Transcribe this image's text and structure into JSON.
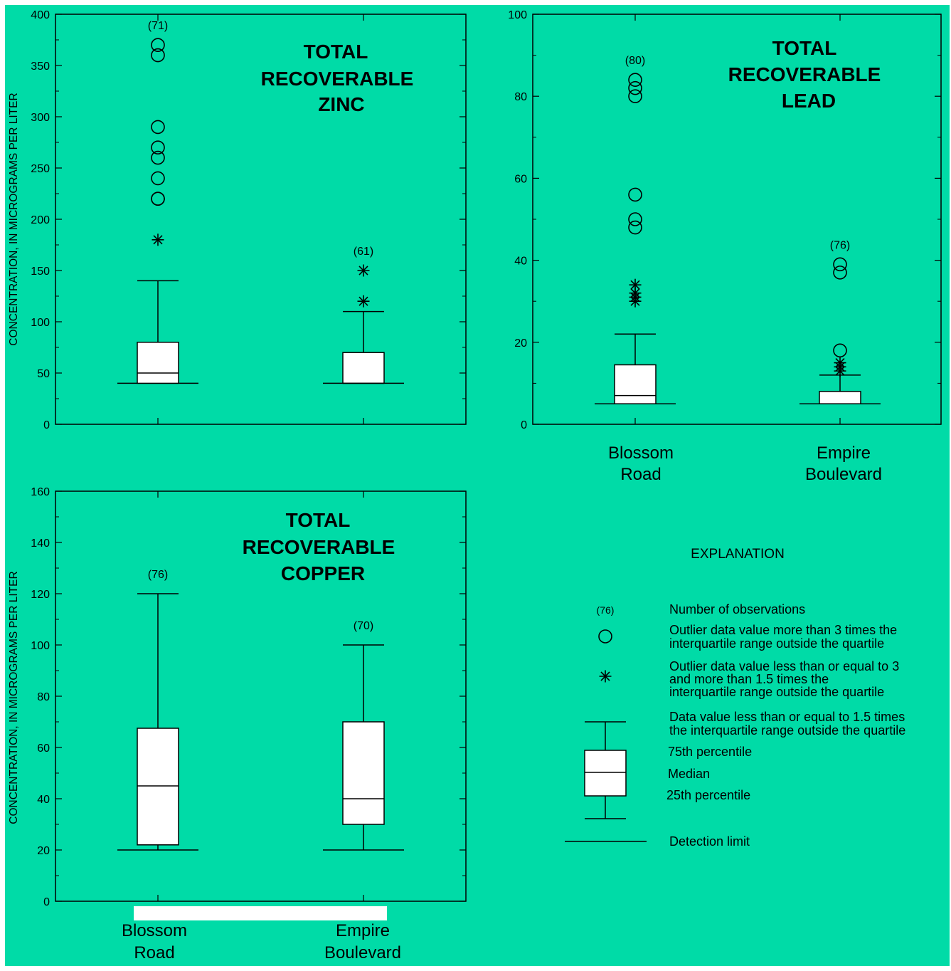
{
  "background_color": "#00dba7",
  "ink_color": "#000000",
  "box_fill": "#ffffff",
  "chart_data": [
    {
      "type": "box",
      "title": [
        "TOTAL",
        "RECOVERABLE",
        "ZINC"
      ],
      "ylabel": "CONCENTRATION, IN MICROGRAMS PER LITER",
      "ylim": [
        0,
        400
      ],
      "yticks": [
        0,
        50,
        100,
        150,
        200,
        250,
        300,
        350,
        400
      ],
      "minor_ticks": [
        25,
        75,
        125,
        175,
        225,
        275,
        325,
        375
      ],
      "categories": [],
      "detection_limit": 40,
      "boxes": [
        {
          "site": "Blossom Road",
          "n_label": "(71)",
          "q1": 40,
          "median": 50,
          "q3": 80,
          "whisker_low": 40,
          "whisker_high": 140,
          "near_outliers": [
            180
          ],
          "far_outliers": [
            220,
            220,
            240,
            260,
            270,
            290,
            360,
            370
          ]
        },
        {
          "site": "Empire Boulevard",
          "n_label": "(61)",
          "q1": 40,
          "median": 40,
          "q3": 70,
          "whisker_low": 40,
          "whisker_high": 110,
          "near_outliers": [
            120,
            150
          ],
          "far_outliers": []
        }
      ]
    },
    {
      "type": "box",
      "title": [
        "TOTAL",
        "RECOVERABLE",
        "LEAD"
      ],
      "ylabel": "",
      "ylim": [
        0,
        100
      ],
      "yticks": [
        0,
        20,
        40,
        60,
        80,
        100
      ],
      "minor_ticks": [
        10,
        30,
        50,
        70,
        90
      ],
      "categories": [
        "Blossom Road",
        "Empire Boulevard"
      ],
      "detection_limit": 5,
      "boxes": [
        {
          "site": "Blossom Road",
          "n_label": "(80)",
          "q1": 5,
          "median": 7,
          "q3": 14.5,
          "whisker_low": 5,
          "whisker_high": 22,
          "near_outliers": [
            30,
            31,
            32,
            34
          ],
          "far_outliers": [
            48,
            50,
            56,
            80,
            82,
            84
          ]
        },
        {
          "site": "Empire Boulevard",
          "n_label": "(76)",
          "q1": 5,
          "median": 5,
          "q3": 8,
          "whisker_low": 5,
          "whisker_high": 12,
          "near_outliers": [
            13,
            14,
            15
          ],
          "far_outliers": [
            18,
            37,
            39
          ]
        }
      ]
    },
    {
      "type": "box",
      "title": [
        "TOTAL",
        "RECOVERABLE",
        "COPPER"
      ],
      "ylabel": "CONCENTRATION, IN MICROGRAMS PER LITER",
      "ylim": [
        0,
        160
      ],
      "yticks": [
        0,
        20,
        40,
        60,
        80,
        100,
        120,
        140,
        160
      ],
      "minor_ticks": [
        10,
        30,
        50,
        70,
        90,
        110,
        130,
        150
      ],
      "categories": [
        "Blossom Road",
        "Empire Boulevard"
      ],
      "detection_limit": 20,
      "boxes": [
        {
          "site": "Blossom Road",
          "n_label": "(76)",
          "q1": 22,
          "median": 45,
          "q3": 67.5,
          "whisker_low": 20,
          "whisker_high": 120,
          "near_outliers": [],
          "far_outliers": []
        },
        {
          "site": "Empire Boulevard",
          "n_label": "(70)",
          "q1": 30,
          "median": 40,
          "q3": 70,
          "whisker_low": 20,
          "whisker_high": 100,
          "near_outliers": [],
          "far_outliers": []
        }
      ]
    }
  ],
  "explanation": {
    "title": "EXPLANATION",
    "n_label": "(76)",
    "items": {
      "observations": "Number of observations",
      "far_outlier": [
        "Outlier data value more than 3 times the",
        "interquartile range outside the quartile"
      ],
      "near_outlier": [
        "Outlier data value less than or equal to 3",
        "and more than 1.5 times the",
        "interquartile range outside the quartile"
      ],
      "whisker": [
        "Data value less than or equal to 1.5 times",
        "the interquartile range outside the quartile"
      ],
      "p75": "75th percentile",
      "median": "Median",
      "p25": "25th percentile",
      "detection": "Detection limit"
    }
  }
}
